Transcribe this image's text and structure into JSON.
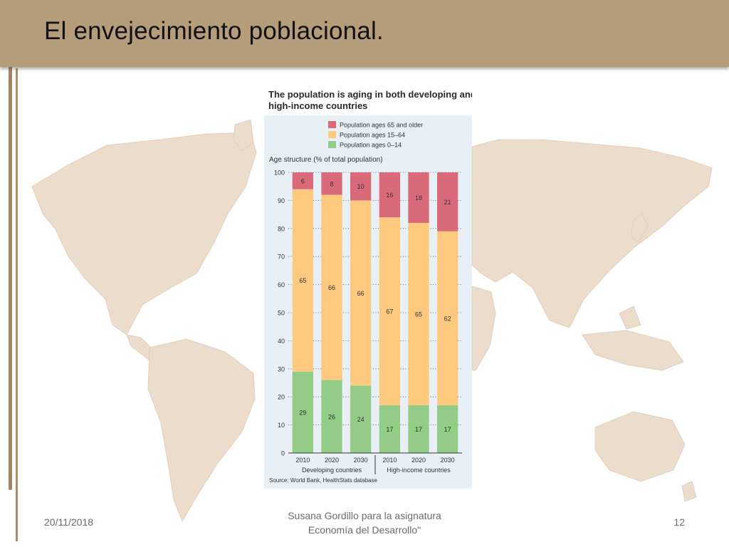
{
  "slide": {
    "title": "El envejecimiento poblacional.",
    "footer": {
      "date": "20/11/2018",
      "center_line1": "Susana Gordillo para la asignatura",
      "center_line2": "Economía del Desarrollo\"",
      "page": "12"
    }
  },
  "colors": {
    "header": "#b59c7b",
    "map_land": "#ecdccb",
    "series_old": "#d96a7a",
    "series_working": "#fcc97e",
    "series_young": "#92cc86",
    "chart_panel": "#e8f0f5"
  },
  "chart_data": {
    "type": "bar",
    "stacked": true,
    "title_line1": "The population is aging in both developing and",
    "title_line2": "high-income countries",
    "ylabel": "Age structure (% of total population)",
    "ylim": [
      0,
      100
    ],
    "yticks": [
      0,
      10,
      20,
      30,
      40,
      50,
      60,
      70,
      80,
      90,
      100
    ],
    "grid": true,
    "categories": [
      "2010",
      "2020",
      "2030",
      "2010",
      "2020",
      "2030"
    ],
    "groups": [
      {
        "name": "Developing countries",
        "categories": [
          0,
          1,
          2
        ]
      },
      {
        "name": "High-income countries",
        "categories": [
          3,
          4,
          5
        ]
      }
    ],
    "series": [
      {
        "name": "Population ages 0–14",
        "color": "#92cc86",
        "values": [
          29,
          26,
          24,
          17,
          17,
          17
        ]
      },
      {
        "name": "Population ages 15–64",
        "color": "#fcc97e",
        "values": [
          65,
          66,
          66,
          67,
          65,
          62
        ]
      },
      {
        "name": "Population ages 65 and older",
        "color": "#d96a7a",
        "values": [
          6,
          8,
          10,
          16,
          18,
          21
        ]
      }
    ],
    "legend_order": [
      "Population ages 65 and older",
      "Population ages 15–64",
      "Population ages 0–14"
    ],
    "legend_position": "top-left",
    "source": "Source: World Bank, HealthStats database"
  }
}
